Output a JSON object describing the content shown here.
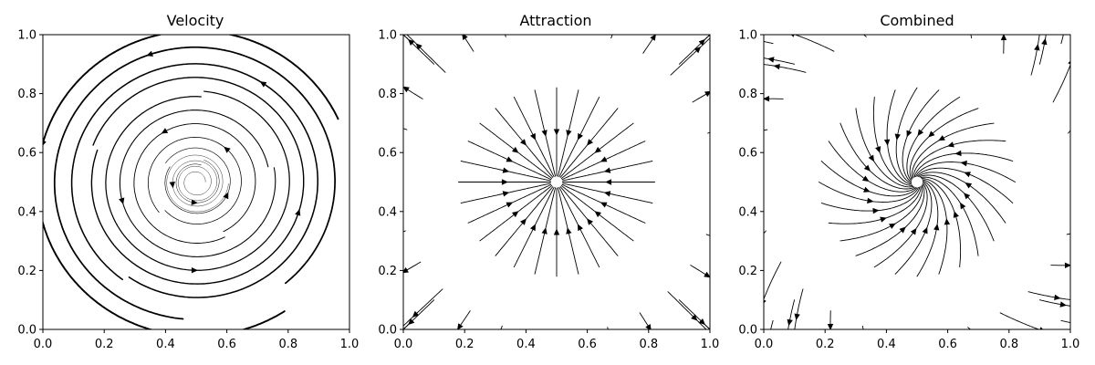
{
  "chart_data": [
    {
      "type": "streamplot",
      "title": "Velocity",
      "field": "rotation",
      "center": [
        0.5,
        0.5
      ],
      "xlim": [
        0.0,
        1.0
      ],
      "ylim": [
        0.0,
        1.0
      ],
      "xticks": [
        "0.0",
        "0.2",
        "0.4",
        "0.6",
        "0.8",
        "1.0"
      ],
      "yticks": [
        "0.0",
        "0.2",
        "0.4",
        "0.6",
        "0.8",
        "1.0"
      ],
      "grid": false,
      "line_color": "#000000"
    },
    {
      "type": "streamplot",
      "title": "Attraction",
      "field": "radial",
      "center": [
        0.5,
        0.5
      ],
      "boundary_radius": 0.4,
      "xlim": [
        0.0,
        1.0
      ],
      "ylim": [
        0.0,
        1.0
      ],
      "xticks": [
        "0.0",
        "0.2",
        "0.4",
        "0.6",
        "0.8",
        "1.0"
      ],
      "yticks": [
        "0.0",
        "0.2",
        "0.4",
        "0.6",
        "0.8",
        "1.0"
      ],
      "grid": false,
      "line_color": "#000000"
    },
    {
      "type": "streamplot",
      "title": "Combined",
      "field": "radial+rotation",
      "center": [
        0.5,
        0.5
      ],
      "boundary_radius": 0.4,
      "xlim": [
        0.0,
        1.0
      ],
      "ylim": [
        0.0,
        1.0
      ],
      "xticks": [
        "0.0",
        "0.2",
        "0.4",
        "0.6",
        "0.8",
        "1.0"
      ],
      "yticks": [
        "0.0",
        "0.2",
        "0.4",
        "0.6",
        "0.8",
        "1.0"
      ],
      "grid": false,
      "line_color": "#000000"
    }
  ]
}
